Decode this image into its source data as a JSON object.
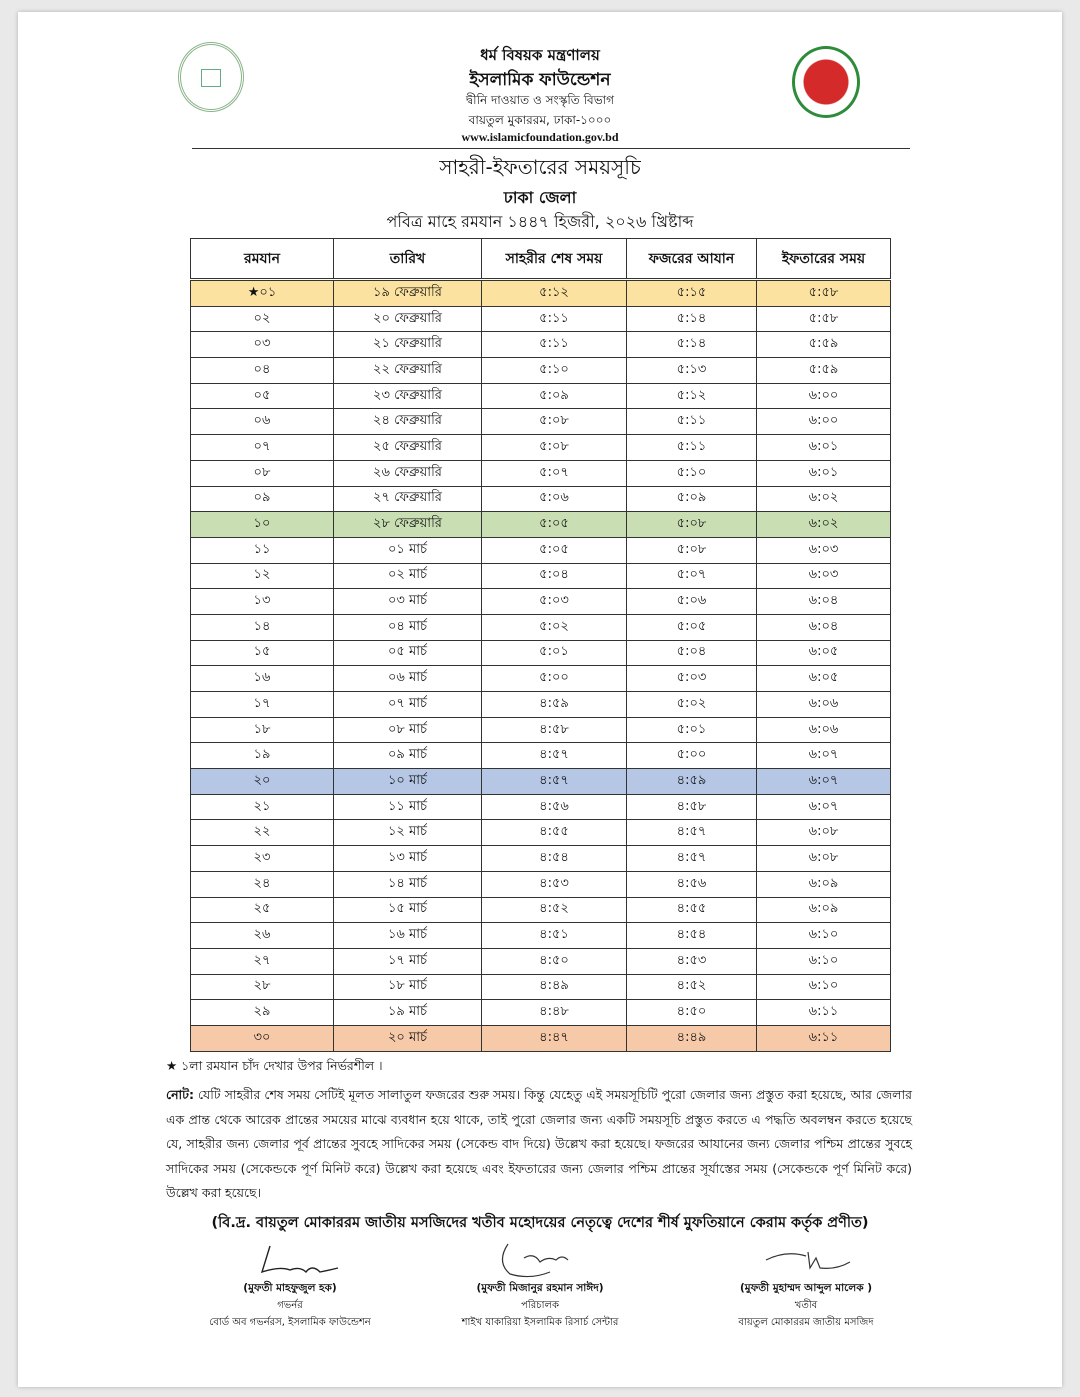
{
  "header": {
    "ministry": "ধর্ম বিষয়ক মন্ত্রণালয়",
    "organization": "ইসলামিক ফাউন্ডেশন",
    "department": "দ্বীনি দাওয়াত ও সংস্কৃতি বিভাগ",
    "address": "বায়তুল মুকাররম, ঢাকা-১০০০",
    "website": "www.islamicfoundation.gov.bd",
    "left_logo": "islamic-foundation-logo",
    "right_logo": "bangladesh-government-seal"
  },
  "title": {
    "main": "সাহরী-ইফতারের সময়সূচি",
    "district": "ঢাকা জেলা",
    "period": "পবিত্র মাহে রমযান ১৪৪৭ হিজরী, ২০২৬ খ্রিষ্টাব্দ"
  },
  "table": {
    "columns": [
      "রমযান",
      "তারিখ",
      "সাহরীর শেষ সময়",
      "ফজরের আযান",
      "ইফতারের সময়"
    ],
    "rows": [
      {
        "cells": [
          "★০১",
          "১৯ ফেব্রুয়ারি",
          "৫:১২",
          "৫:১৫",
          "৫:৫৮"
        ],
        "highlight": "#fbe2a0"
      },
      {
        "cells": [
          "০২",
          "২০ ফেব্রুয়ারি",
          "৫:১১",
          "৫:১৪",
          "৫:৫৮"
        ]
      },
      {
        "cells": [
          "০৩",
          "২১ ফেব্রুয়ারি",
          "৫:১১",
          "৫:১৪",
          "৫:৫৯"
        ]
      },
      {
        "cells": [
          "০৪",
          "২২ ফেব্রুয়ারি",
          "৫:১০",
          "৫:১৩",
          "৫:৫৯"
        ]
      },
      {
        "cells": [
          "০৫",
          "২৩ ফেব্রুয়ারি",
          "৫:০৯",
          "৫:১২",
          "৬:০০"
        ]
      },
      {
        "cells": [
          "০৬",
          "২৪ ফেব্রুয়ারি",
          "৫:০৮",
          "৫:১১",
          "৬:০০"
        ]
      },
      {
        "cells": [
          "০৭",
          "২৫ ফেব্রুয়ারি",
          "৫:০৮",
          "৫:১১",
          "৬:০১"
        ]
      },
      {
        "cells": [
          "০৮",
          "২৬ ফেব্রুয়ারি",
          "৫:০৭",
          "৫:১০",
          "৬:০১"
        ]
      },
      {
        "cells": [
          "০৯",
          "২৭ ফেব্রুয়ারি",
          "৫:০৬",
          "৫:০৯",
          "৬:০২"
        ]
      },
      {
        "cells": [
          "১০",
          "২৮ ফেব্রুয়ারি",
          "৫:০৫",
          "৫:০৮",
          "৬:০২"
        ],
        "highlight": "#c9dfb3"
      },
      {
        "cells": [
          "১১",
          "০১ মার্চ",
          "৫:০৫",
          "৫:০৮",
          "৬:০৩"
        ]
      },
      {
        "cells": [
          "১২",
          "০২ মার্চ",
          "৫:০৪",
          "৫:০৭",
          "৬:০৩"
        ]
      },
      {
        "cells": [
          "১৩",
          "০৩ মার্চ",
          "৫:০৩",
          "৫:০৬",
          "৬:০৪"
        ]
      },
      {
        "cells": [
          "১৪",
          "০৪ মার্চ",
          "৫:০২",
          "৫:০৫",
          "৬:০৪"
        ]
      },
      {
        "cells": [
          "১৫",
          "০৫ মার্চ",
          "৫:০১",
          "৫:০৪",
          "৬:০৫"
        ]
      },
      {
        "cells": [
          "১৬",
          "০৬ মার্চ",
          "৫:০০",
          "৫:০৩",
          "৬:০৫"
        ]
      },
      {
        "cells": [
          "১৭",
          "০৭ মার্চ",
          "৪:৫৯",
          "৫:০২",
          "৬:০৬"
        ]
      },
      {
        "cells": [
          "১৮",
          "০৮ মার্চ",
          "৪:৫৮",
          "৫:০১",
          "৬:০৬"
        ]
      },
      {
        "cells": [
          "১৯",
          "০৯ মার্চ",
          "৪:৫৭",
          "৫:০০",
          "৬:০৭"
        ]
      },
      {
        "cells": [
          "২০",
          "১০ মার্চ",
          "৪:৫৭",
          "৪:৫৯",
          "৬:০৭"
        ],
        "highlight": "#b5c7e5"
      },
      {
        "cells": [
          "২১",
          "১১ মার্চ",
          "৪:৫৬",
          "৪:৫৮",
          "৬:০৭"
        ]
      },
      {
        "cells": [
          "২২",
          "১২ মার্চ",
          "৪:৫৫",
          "৪:৫৭",
          "৬:০৮"
        ]
      },
      {
        "cells": [
          "২৩",
          "১৩ মার্চ",
          "৪:৫৪",
          "৪:৫৭",
          "৬:০৮"
        ]
      },
      {
        "cells": [
          "২৪",
          "১৪ মার্চ",
          "৪:৫৩",
          "৪:৫৬",
          "৬:০৯"
        ]
      },
      {
        "cells": [
          "২৫",
          "১৫ মার্চ",
          "৪:৫২",
          "৪:৫৫",
          "৬:০৯"
        ]
      },
      {
        "cells": [
          "২৬",
          "১৬ মার্চ",
          "৪:৫১",
          "৪:৫৪",
          "৬:১০"
        ]
      },
      {
        "cells": [
          "২৭",
          "১৭ মার্চ",
          "৪:৫০",
          "৪:৫৩",
          "৬:১০"
        ]
      },
      {
        "cells": [
          "২৮",
          "১৮ মার্চ",
          "৪:৪৯",
          "৪:৫২",
          "৬:১০"
        ]
      },
      {
        "cells": [
          "২৯",
          "১৯ মার্চ",
          "৪:৪৮",
          "৪:৫০",
          "৬:১১"
        ]
      },
      {
        "cells": [
          "৩০",
          "২০ মার্চ",
          "৪:৪৭",
          "৪:৪৯",
          "৬:১১"
        ],
        "highlight": "#f6caa9"
      }
    ]
  },
  "footnote": "★ ১লা রমযান চাঁদ দেখার উপর নির্ভরশীল ।",
  "note": {
    "label": "নোট:",
    "text": " যেটি সাহরীর শেষ সময় সেটিই মূলত সালাতুল ফজরের শুরু সময়। কিন্তু যেহেতু এই সময়সূচিটি পুরো জেলার জন্য প্রস্তুত করা হয়েছে, আর জেলার এক প্রান্ত থেকে আরেক প্রান্তের সময়ের মাঝে ব্যবধান হয়ে থাকে, তাই পুরো জেলার জন্য একটি সময়সূচি প্রস্তুত করতে এ পদ্ধতি অবলম্বন করতে হয়েছে যে, সাহরীর জন্য জেলার পূর্ব প্রান্তের সুবহে সাদিকের সময় (সেকেন্ড বাদ দিয়ে) উল্লেখ করা হয়েছে। ফজরের আযানের জন্য জেলার পশ্চিম প্রান্তের সুবহে সাদিকের সময় (সেকেন্ডকে পূর্ণ মিনিট করে) উল্লেখ করা হয়েছে এবং ইফতারের জন্য জেলার পশ্চিম প্রান্তের সূর্যাস্তের সময় (সেকেন্ডকে পূর্ণ মিনিট করে) উল্লেখ করা হয়েছে।"
  },
  "endorsement": "(বি.দ্র. বায়তুল মোকাররম জাতীয় মসজিদের খতীব মহোদয়ের নেতৃত্বে দেশের শীর্ষ মুফতিয়ানে কেরাম কর্তৃক প্রণীত)",
  "signatories": [
    {
      "name": "(মুফতী মাহফুজুল হক)",
      "role": "গভর্নর",
      "org": "বোর্ড অব গভর্নরস, ইসলামিক ফাউন্ডেশন"
    },
    {
      "name": "(মুফতী মিজানুর রহমান সাঈদ)",
      "role": "পরিচালক",
      "org": "শাইখ যাকারিয়া ইসলামিক রিসার্চ সেন্টার"
    },
    {
      "name": "(মুফতী মুহাম্মদ আব্দুল মালেক )",
      "role": "খতীব",
      "org": "বায়তুল মোকাররম জাতীয় মসজিদ"
    }
  ]
}
